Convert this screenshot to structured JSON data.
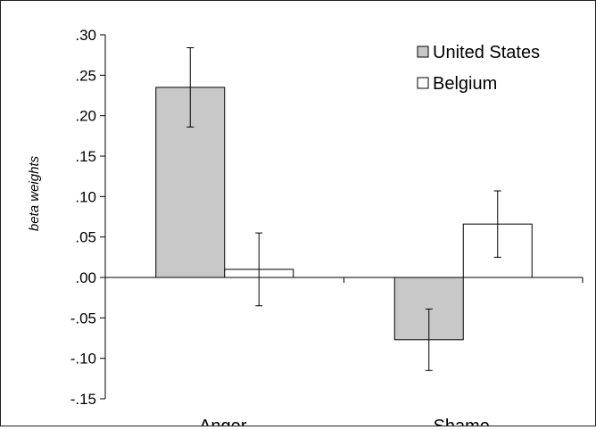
{
  "chart_data": {
    "type": "bar",
    "categories": [
      "Anger",
      "Shame"
    ],
    "series": [
      {
        "name": "United States",
        "values": [
          0.235,
          -0.077
        ],
        "errors": [
          0.049,
          0.038
        ],
        "color": "#c8c8c8"
      },
      {
        "name": "Belgium",
        "values": [
          0.01,
          0.066
        ],
        "errors": [
          0.045,
          0.041
        ],
        "color": "#ffffff"
      }
    ],
    "ylabel": "beta weights",
    "xlabel": "",
    "ylim": [
      -0.15,
      0.3
    ],
    "yticks": [
      ".30",
      ".25",
      ".20",
      ".15",
      ".10",
      ".05",
      ".00",
      "-.05",
      "-.10",
      "-.15"
    ],
    "ytick_values": [
      0.3,
      0.25,
      0.2,
      0.15,
      0.1,
      0.05,
      0.0,
      -0.05,
      -0.1,
      -0.15
    ],
    "legend_position": "top-right",
    "grid": false
  }
}
